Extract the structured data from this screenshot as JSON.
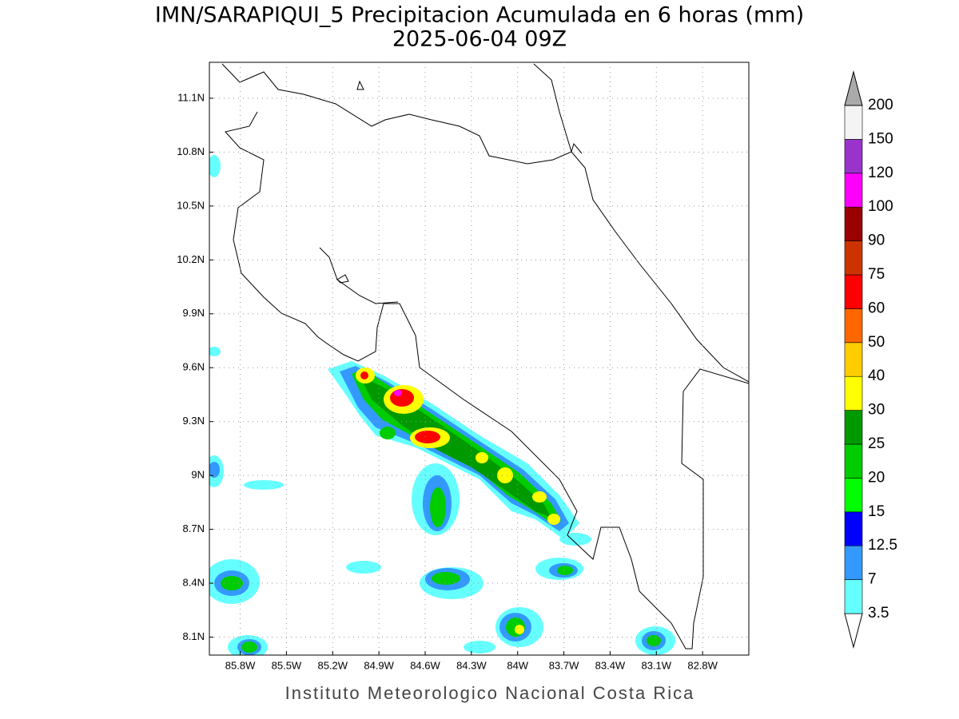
{
  "title": "IMN/SARAPIQUI_5 Precipitacion Acumulada en 6 horas (mm)",
  "subtitle": "2025-06-04 09Z",
  "footer": "Instituto Meteorologico Nacional Costa Rica",
  "map": {
    "lonlim": [
      -86,
      -82.5
    ],
    "latlim": [
      8,
      11.3
    ],
    "lonticks": [
      {
        "value": -85.8,
        "label": "85.8W"
      },
      {
        "value": -85.5,
        "label": "85.5W"
      },
      {
        "value": -85.2,
        "label": "85.2W"
      },
      {
        "value": -84.9,
        "label": "84.9W"
      },
      {
        "value": -84.6,
        "label": "84.6W"
      },
      {
        "value": -84.3,
        "label": "84.3W"
      },
      {
        "value": -84,
        "label": "84W"
      },
      {
        "value": -83.7,
        "label": "83.7W"
      },
      {
        "value": -83.4,
        "label": "83.4W"
      },
      {
        "value": -83.1,
        "label": "83.1W"
      },
      {
        "value": -82.8,
        "label": "82.8W"
      }
    ],
    "latticks": [
      {
        "value": 8.1,
        "label": "8.1N"
      },
      {
        "value": 8.4,
        "label": "8.4N"
      },
      {
        "value": 8.7,
        "label": "8.7N"
      },
      {
        "value": 9,
        "label": "9N"
      },
      {
        "value": 9.3,
        "label": "9.3N"
      },
      {
        "value": 9.6,
        "label": "9.6N"
      },
      {
        "value": 9.9,
        "label": "9.9N"
      },
      {
        "value": 10.2,
        "label": "10.2N"
      },
      {
        "value": 10.5,
        "label": "10.5N"
      },
      {
        "value": 10.8,
        "label": "10.8N"
      },
      {
        "value": 11.1,
        "label": "11.1N"
      }
    ]
  },
  "colorbar": {
    "levels": [
      3.5,
      7,
      12.5,
      15,
      20,
      25,
      30,
      40,
      50,
      60,
      75,
      90,
      100,
      120,
      150,
      200
    ],
    "colors": [
      "#ffffff",
      "#66ffff",
      "#3399ff",
      "#0000ff",
      "#00ff00",
      "#00cc00",
      "#009900",
      "#ffff00",
      "#ffcc00",
      "#ff6600",
      "#ff0000",
      "#cc3300",
      "#990000",
      "#ff00ff",
      "#9933cc",
      "#f4f4f4",
      "#aaaaaa"
    ]
  }
}
